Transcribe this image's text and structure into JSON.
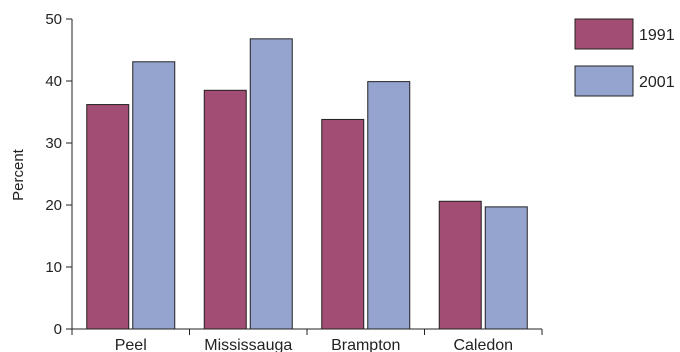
{
  "chart_data": {
    "type": "bar",
    "title": "",
    "xlabel": "",
    "ylabel": "Percent",
    "ylim": [
      0,
      50
    ],
    "yticks": [
      0,
      10,
      20,
      30,
      40,
      50
    ],
    "categories": [
      "Peel",
      "Mississauga",
      "Brampton",
      "Caledon"
    ],
    "series": [
      {
        "name": "1991",
        "color": "#a24d73",
        "values": [
          36.2,
          38.5,
          33.8,
          20.6
        ]
      },
      {
        "name": "2001",
        "color": "#95a3cf",
        "values": [
          43.1,
          46.8,
          39.9,
          19.7
        ]
      }
    ],
    "legend": "top-right",
    "grid": false
  }
}
